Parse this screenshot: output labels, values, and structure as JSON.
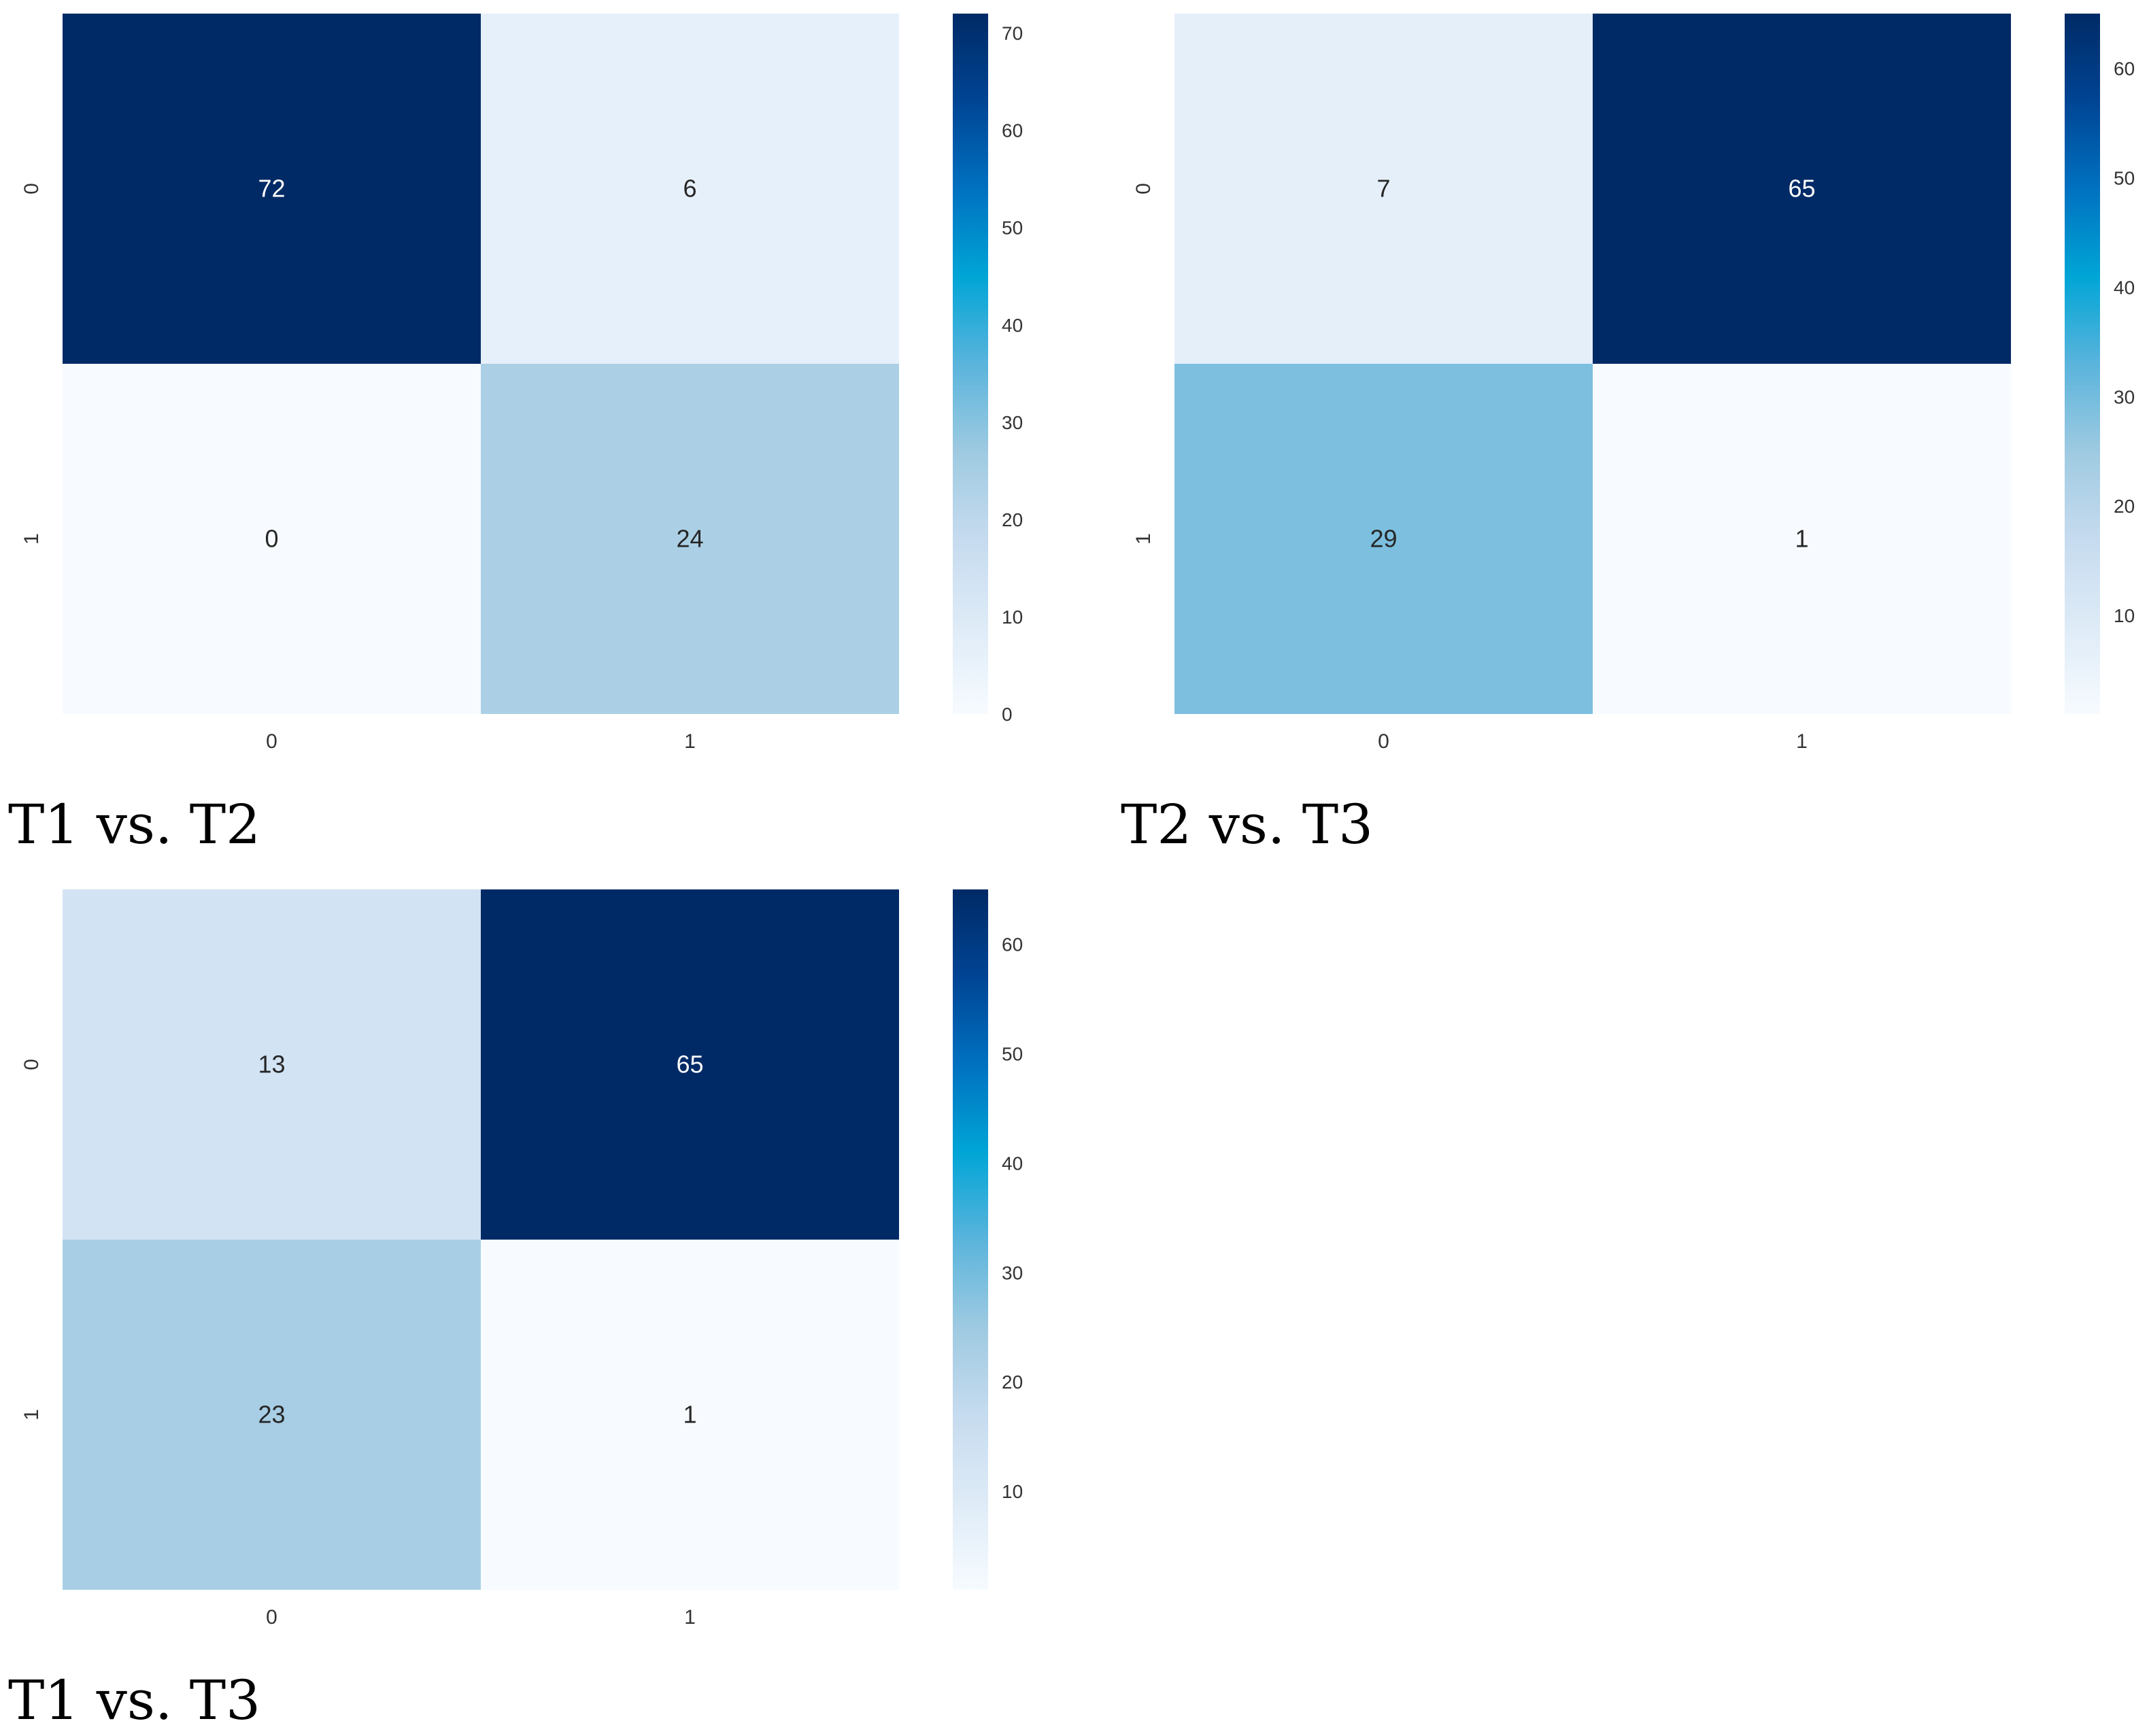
{
  "chart_data": [
    {
      "type": "heatmap",
      "caption": "T1 vs. T2",
      "x_tick_labels": [
        "0",
        "1"
      ],
      "y_tick_labels": [
        "0",
        "1"
      ],
      "values": [
        [
          72,
          6
        ],
        [
          0,
          24
        ]
      ],
      "colorbar": {
        "min": 0,
        "max": 72,
        "ticks": [
          "0",
          "10",
          "20",
          "30",
          "40",
          "50",
          "60",
          "70"
        ]
      }
    },
    {
      "type": "heatmap",
      "caption": "T2 vs. T3",
      "x_tick_labels": [
        "0",
        "1"
      ],
      "y_tick_labels": [
        "0",
        "1"
      ],
      "values": [
        [
          7,
          65
        ],
        [
          29,
          1
        ]
      ],
      "colorbar": {
        "min": 1,
        "max": 65,
        "ticks": [
          "10",
          "20",
          "30",
          "40",
          "50",
          "60"
        ]
      }
    },
    {
      "type": "heatmap",
      "caption": "T1 vs. T3",
      "x_tick_labels": [
        "0",
        "1"
      ],
      "y_tick_labels": [
        "0",
        "1"
      ],
      "values": [
        [
          13,
          65
        ],
        [
          23,
          1
        ]
      ],
      "colorbar": {
        "min": 1,
        "max": 65,
        "ticks": [
          "10",
          "20",
          "30",
          "40",
          "50",
          "60"
        ]
      }
    }
  ],
  "colors": {
    "colormap": [
      "#f7fbff",
      "#deebf7",
      "#c6dbef",
      "#9ecae1",
      "#5ab4dc",
      "#00a5d6",
      "#0071c0",
      "#004494",
      "#002a66"
    ],
    "dark_text": "#262626",
    "light_text": "#ffffff"
  }
}
